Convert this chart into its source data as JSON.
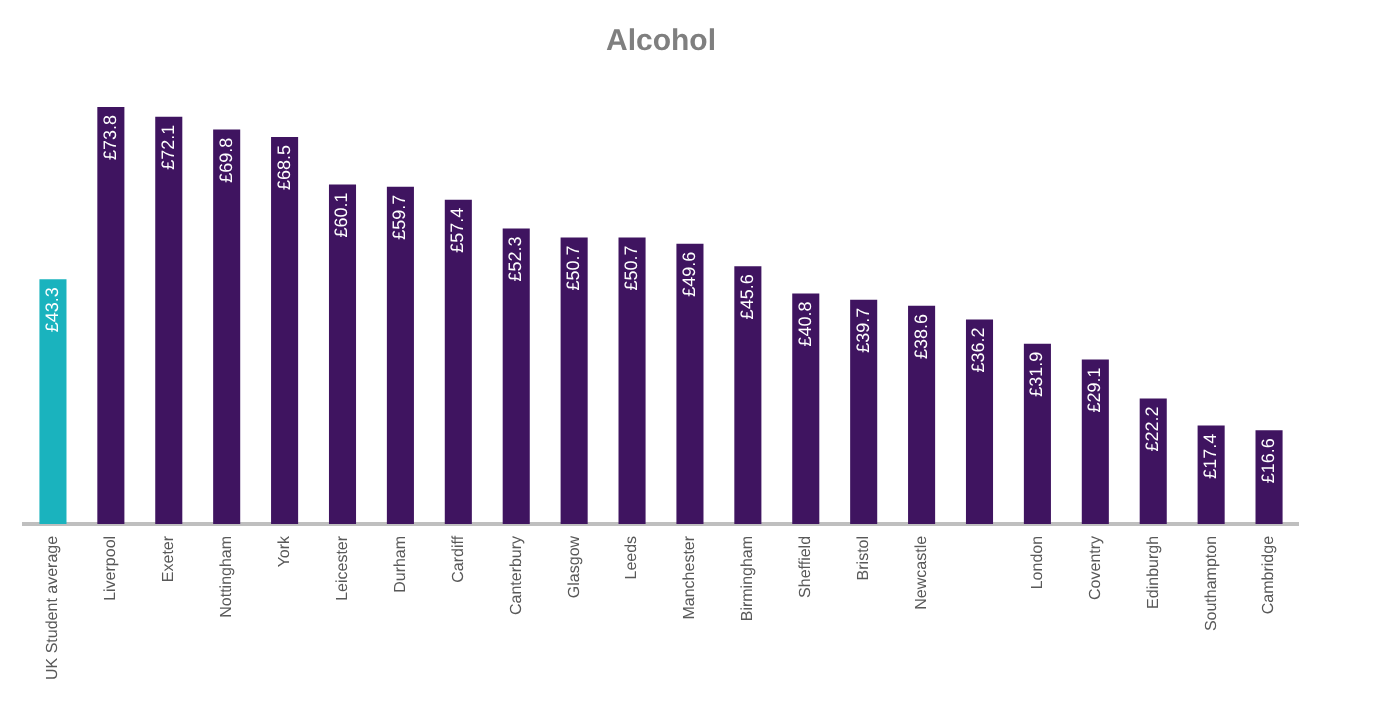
{
  "chart_data": {
    "type": "bar",
    "title": "Alcohol",
    "categories": [
      "UK Student average",
      "Liverpool",
      "Exeter",
      "Nottingham",
      "York",
      "Leicester",
      "Durham",
      "Cardiff",
      "Canterbury",
      "Glasgow",
      "Leeds",
      "Manchester",
      "Birmingham",
      "Sheffield",
      "Bristol",
      "Newcastle",
      null,
      "London",
      "Coventry",
      "Edinburgh",
      "Southampton",
      "Cambridge"
    ],
    "values": [
      43.3,
      73.8,
      72.1,
      69.8,
      68.5,
      60.1,
      59.7,
      57.4,
      52.3,
      50.7,
      50.7,
      49.6,
      45.6,
      40.8,
      39.7,
      38.6,
      36.2,
      31.9,
      29.1,
      22.2,
      17.4,
      16.6
    ],
    "value_labels": [
      "£43.3",
      "£73.8",
      "£72.1",
      "£69.8",
      "£68.5",
      "£60.1",
      "£59.7",
      "£57.4",
      "£52.3",
      "£50.7",
      "£50.7",
      "£49.6",
      "£45.6",
      "£40.8",
      "£39.7",
      "£38.6",
      "£36.2",
      "£31.9",
      "£29.1",
      "£22.2",
      "£17.4",
      "£16.6"
    ],
    "colors": [
      "#1ab3be",
      "#3f1460",
      "#3f1460",
      "#3f1460",
      "#3f1460",
      "#3f1460",
      "#3f1460",
      "#3f1460",
      "#3f1460",
      "#3f1460",
      "#3f1460",
      "#3f1460",
      "#3f1460",
      "#3f1460",
      "#3f1460",
      "#3f1460",
      "#3f1460",
      "#3f1460",
      "#3f1460",
      "#3f1460",
      "#3f1460",
      "#3f1460"
    ],
    "grid": false,
    "legend": false
  }
}
